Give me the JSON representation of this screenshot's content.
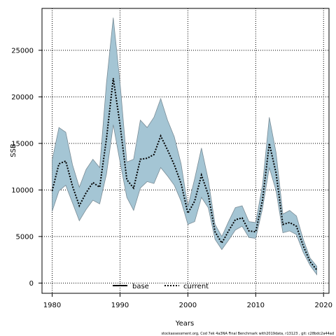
{
  "chart_data": {
    "type": "area",
    "xlabel": "Years",
    "ylabel": "SSB",
    "xlim": [
      1978.5,
      2020.8
    ],
    "ylim": [
      -1100,
      29500
    ],
    "x_ticks": [
      1980,
      1990,
      2000,
      2010,
      2020
    ],
    "y_ticks": [
      0,
      5000,
      10000,
      15000,
      20000,
      25000
    ],
    "grid": true,
    "legend_position": "bottom-center",
    "x": [
      1980,
      1981,
      1982,
      1983,
      1984,
      1985,
      1986,
      1987,
      1988,
      1989,
      1990,
      1991,
      1992,
      1993,
      1994,
      1995,
      1996,
      1997,
      1998,
      1999,
      2000,
      2001,
      2002,
      2003,
      2004,
      2005,
      2006,
      2007,
      2008,
      2009,
      2010,
      2011,
      2012,
      2013,
      2014,
      2015,
      2016,
      2017,
      2018,
      2019
    ],
    "band_lower": [
      7700,
      9900,
      10500,
      8600,
      6700,
      7900,
      8900,
      8500,
      11700,
      17000,
      13000,
      9200,
      7800,
      10200,
      10900,
      10700,
      12400,
      11500,
      10500,
      8800,
      6300,
      6600,
      9200,
      8100,
      4700,
      3600,
      4600,
      5700,
      6100,
      4900,
      4800,
      8000,
      12400,
      9900,
      5400,
      5600,
      5200,
      3300,
      1900,
      900
    ],
    "band_upper": [
      13200,
      16700,
      16200,
      12700,
      10300,
      12200,
      13300,
      12400,
      21500,
      28500,
      21500,
      13000,
      13300,
      17500,
      16700,
      17800,
      19800,
      17500,
      15700,
      12800,
      8200,
      11200,
      14500,
      11100,
      6300,
      5000,
      6600,
      8100,
      8300,
      6600,
      6500,
      10500,
      17800,
      14000,
      7400,
      7800,
      7200,
      4700,
      2700,
      1800
    ],
    "series": [
      {
        "name": "current",
        "values": [
          9900,
          12800,
          13100,
          10400,
          8300,
          9700,
          10800,
          10300,
          15500,
          22000,
          17000,
          11100,
          10200,
          13300,
          13400,
          13800,
          15800,
          14300,
          12700,
          10700,
          7500,
          8800,
          11600,
          9500,
          5500,
          4300,
          5600,
          6800,
          7000,
          5600,
          5500,
          8900,
          15000,
          11800,
          6300,
          6500,
          6100,
          4000,
          2300,
          1400
        ]
      }
    ],
    "legend": [
      {
        "label": "base",
        "style": "solid"
      },
      {
        "label": "current",
        "style": "dotted"
      }
    ],
    "colors": {
      "band_fill": "#a4c5d4",
      "band_stroke": "#7a8c96",
      "line": "#000000",
      "grid": "#000000"
    }
  },
  "footer_text": "stockassessment.org,  Cod  7ek  4a3NA  Final  Benchmark  with2019data,  r13123 ,  git:  c28bdc2a44ad"
}
